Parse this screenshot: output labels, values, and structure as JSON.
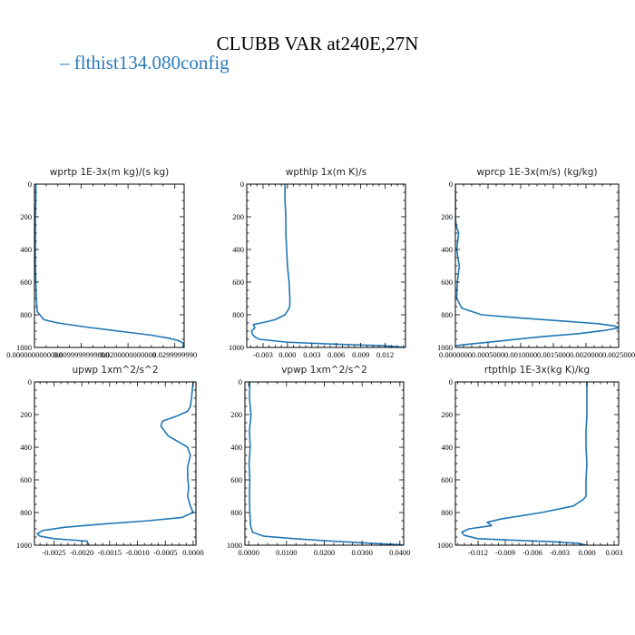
{
  "title": "CLUBB VAR at240E,27N",
  "legend": {
    "label": "flthist134.080config",
    "color": "#1f77b4"
  },
  "chart_data": [
    {
      "type": "line",
      "title": "wprtp  1E-3x(m kg)/(s kg)",
      "xlim": [
        0.0,
        0.032
      ],
      "ylim": [
        1000,
        0
      ],
      "xticks": [
        0.0,
        0.01,
        0.02,
        0.03
      ],
      "xtick_labels": [
        "0.0000000000000",
        "0.0099999999800",
        "0.0200000000000",
        "0.0299999990"
      ],
      "yticks": [
        0,
        200,
        400,
        600,
        800,
        1000
      ],
      "series": [
        {
          "x": [
            0.0003,
            0.0003,
            0.0002,
            0.0002,
            0.0002,
            0.0002,
            0.0003,
            0.0004,
            0.0006,
            0.002,
            0.005,
            0.011,
            0.018,
            0.025,
            0.029,
            0.031,
            0.0318,
            0.0318
          ],
          "y": [
            0,
            100,
            200,
            300,
            400,
            500,
            600,
            700,
            780,
            830,
            850,
            875,
            900,
            925,
            945,
            960,
            975,
            1000
          ]
        }
      ]
    },
    {
      "type": "line",
      "title": "wpthlp  1x(m K)/s",
      "xlim": [
        -0.005,
        0.0145
      ],
      "ylim": [
        1000,
        0
      ],
      "xticks": [
        -0.003,
        0.0,
        0.003,
        0.006,
        0.009,
        0.012
      ],
      "xtick_labels": [
        "-0.003",
        "0.000",
        "0.003",
        "0.006",
        "0.009",
        "0.012"
      ],
      "yticks": [
        0,
        200,
        400,
        600,
        800,
        1000
      ],
      "series": [
        {
          "x": [
            -0.0003,
            -0.0003,
            -0.0002,
            -0.0002,
            -0.0001,
            0.0,
            0.0002,
            0.0003,
            0.0003,
            0.0002,
            -0.0003,
            -0.0015,
            -0.0032,
            -0.0042,
            -0.004,
            -0.0044,
            -0.0043,
            -0.004,
            -0.0035,
            0.0,
            0.006,
            0.012,
            0.0145
          ],
          "y": [
            0,
            100,
            200,
            300,
            400,
            500,
            600,
            700,
            740,
            760,
            800,
            830,
            850,
            860,
            880,
            900,
            920,
            935,
            950,
            968,
            980,
            990,
            1000
          ]
        }
      ]
    },
    {
      "type": "line",
      "title": "wprcp  1E-3x(m/s) (kg/kg)",
      "xlim": [
        0.0,
        0.0025
      ],
      "ylim": [
        1000,
        0
      ],
      "xticks": [
        0.0,
        0.0005,
        0.001,
        0.0015,
        0.002,
        0.0025
      ],
      "xtick_labels": [
        "0.0000000",
        "0.0005000",
        "0.0010000",
        "0.0015000",
        "0.0020000",
        "0.0025000"
      ],
      "yticks": [
        0,
        200,
        400,
        600,
        800,
        1000
      ],
      "series": [
        {
          "x": [
            0.0,
            0.0,
            0.0,
            1e-05,
            5e-05,
            2e-05,
            6e-05,
            3e-05,
            2e-05,
            0.0001,
            0.0004,
            0.001,
            0.0017,
            0.0022,
            0.00245,
            0.0025,
            0.0023,
            0.0019,
            0.0013,
            0.0007,
            0.0002,
            0.0,
            0.0
          ],
          "y": [
            0,
            150,
            200,
            250,
            300,
            400,
            500,
            600,
            700,
            760,
            800,
            820,
            840,
            855,
            870,
            880,
            895,
            915,
            935,
            960,
            980,
            990,
            1000
          ]
        }
      ]
    },
    {
      "type": "line",
      "title": "upwp  1xm^2/s^2",
      "xlim": [
        -0.00285,
        5e-05
      ],
      "ylim": [
        1000,
        0
      ],
      "xticks": [
        -0.0025,
        -0.002,
        -0.0015,
        -0.001,
        -0.0005,
        0.0
      ],
      "xtick_labels": [
        "-0.0025",
        "-0.0020",
        "-0.0015",
        "-0.0010",
        "-0.0005",
        "0.0000"
      ],
      "yticks": [
        0,
        200,
        400,
        600,
        800,
        1000
      ],
      "series": [
        {
          "x": [
            0.0,
            -3e-05,
            -5e-05,
            -0.0001,
            -0.0003,
            -0.00055,
            -0.00058,
            -0.00045,
            -0.00025,
            -0.0001,
            -5e-05,
            -0.0001,
            -0.0001,
            -8e-05,
            -0.0001,
            -5e-05,
            0.0,
            -0.0002,
            -0.0008,
            -0.0016,
            -0.0023,
            -0.0027,
            -0.0028,
            -0.00275,
            -0.0025,
            -0.0019,
            -0.0019
          ],
          "y": [
            0,
            100,
            150,
            180,
            210,
            240,
            270,
            330,
            370,
            400,
            450,
            520,
            580,
            650,
            700,
            760,
            800,
            830,
            850,
            870,
            890,
            910,
            930,
            945,
            960,
            975,
            1000
          ]
        }
      ]
    },
    {
      "type": "line",
      "title": "vpwp  1xm^2/s^2",
      "xlim": [
        -0.001,
        0.041
      ],
      "ylim": [
        1000,
        0
      ],
      "xticks": [
        0.0,
        0.01,
        0.02,
        0.03,
        0.04
      ],
      "xtick_labels": [
        "0.0000",
        "0.0100",
        "0.0200",
        "0.0300",
        "0.0400"
      ],
      "yticks": [
        0,
        200,
        400,
        600,
        800,
        1000
      ],
      "series": [
        {
          "x": [
            0.0003,
            0.0002,
            0.0006,
            0.0002,
            0.0004,
            0.0001,
            0.0003,
            0.0002,
            0.0003,
            0.0005,
            0.001,
            0.004,
            0.012,
            0.022,
            0.032,
            0.0395,
            0.041
          ],
          "y": [
            0,
            100,
            200,
            300,
            400,
            500,
            600,
            700,
            800,
            880,
            920,
            945,
            960,
            975,
            988,
            996,
            1000
          ]
        }
      ]
    },
    {
      "type": "line",
      "title": "rtpthlp  1E-3x(kg K)/kg",
      "xlim": [
        -0.0145,
        0.0035
      ],
      "ylim": [
        1000,
        0
      ],
      "xticks": [
        -0.012,
        -0.009,
        -0.006,
        -0.003,
        0.0,
        0.003
      ],
      "xtick_labels": [
        "-0.012",
        "-0.009",
        "-0.006",
        "-0.003",
        "0.000",
        "0.003"
      ],
      "yticks": [
        0,
        200,
        400,
        600,
        800,
        1000
      ],
      "series": [
        {
          "x": [
            0.0,
            0.0,
            0.0,
            -0.0001,
            -0.0001,
            0.0,
            -0.0001,
            -0.0001,
            -0.0004,
            -0.0015,
            -0.005,
            -0.0095,
            -0.011,
            -0.0105,
            -0.013,
            -0.0138,
            -0.0135,
            -0.012,
            -0.008,
            -0.004,
            -0.001,
            0.0
          ],
          "y": [
            0,
            100,
            200,
            300,
            400,
            500,
            600,
            700,
            720,
            760,
            800,
            840,
            860,
            880,
            900,
            920,
            940,
            960,
            970,
            978,
            988,
            1000
          ]
        }
      ]
    }
  ]
}
